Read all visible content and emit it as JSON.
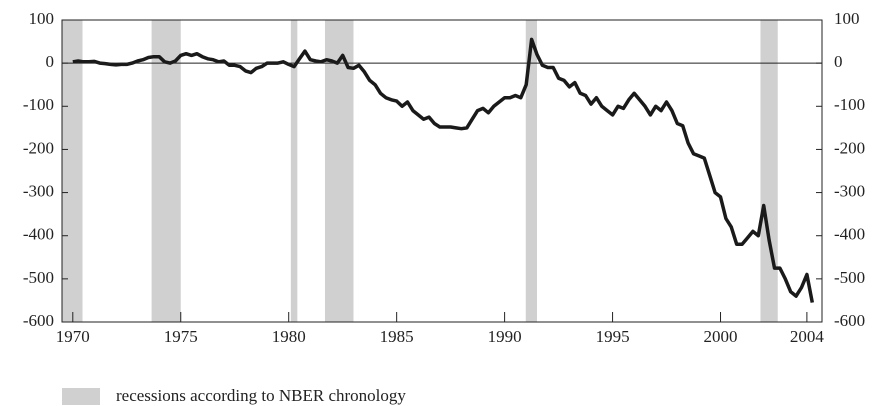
{
  "chart_data": {
    "type": "line",
    "x": [
      1970,
      1970.25,
      1970.5,
      1970.75,
      1971,
      1971.25,
      1971.5,
      1971.75,
      1972,
      1972.25,
      1972.5,
      1972.75,
      1973,
      1973.25,
      1973.5,
      1973.75,
      1974,
      1974.25,
      1974.5,
      1974.75,
      1975,
      1975.25,
      1975.5,
      1975.75,
      1976,
      1976.25,
      1976.5,
      1976.75,
      1977,
      1977.25,
      1977.5,
      1977.75,
      1978,
      1978.25,
      1978.5,
      1978.75,
      1979,
      1979.25,
      1979.5,
      1979.75,
      1980,
      1980.25,
      1980.5,
      1980.75,
      1981,
      1981.25,
      1981.5,
      1981.75,
      1982,
      1982.25,
      1982.5,
      1982.75,
      1983,
      1983.25,
      1983.5,
      1983.75,
      1984,
      1984.25,
      1984.5,
      1984.75,
      1985,
      1985.25,
      1985.5,
      1985.75,
      1986,
      1986.25,
      1986.5,
      1986.75,
      1987,
      1987.25,
      1987.5,
      1987.75,
      1988,
      1988.25,
      1988.5,
      1988.75,
      1989,
      1989.25,
      1989.5,
      1989.75,
      1990,
      1990.25,
      1990.5,
      1990.75,
      1991,
      1991.25,
      1991.5,
      1991.75,
      1992,
      1992.25,
      1992.5,
      1992.75,
      1993,
      1993.25,
      1993.5,
      1993.75,
      1994,
      1994.25,
      1994.5,
      1994.75,
      1995,
      1995.25,
      1995.5,
      1995.75,
      1996,
      1996.25,
      1996.5,
      1996.75,
      1997,
      1997.25,
      1997.5,
      1997.75,
      1998,
      1998.25,
      1998.5,
      1998.75,
      1999,
      1999.25,
      1999.5,
      1999.75,
      2000,
      2000.25,
      2000.5,
      2000.75,
      2001,
      2001.25,
      2001.5,
      2001.75,
      2002,
      2002.25,
      2002.5,
      2002.75,
      2003,
      2003.25,
      2003.5,
      2003.75,
      2004,
      2004.25
    ],
    "series": [
      {
        "color": "#1a1a1a",
        "values": [
          3,
          5,
          3,
          3,
          4,
          0,
          -1,
          -3,
          -4,
          -3,
          -3,
          0,
          5,
          8,
          13,
          15,
          15,
          3,
          0,
          5,
          18,
          22,
          18,
          22,
          15,
          10,
          8,
          3,
          5,
          -5,
          -5,
          -8,
          -18,
          -22,
          -12,
          -8,
          0,
          0,
          0,
          3,
          -3,
          -8,
          10,
          28,
          8,
          5,
          3,
          8,
          5,
          0,
          18,
          -10,
          -12,
          -5,
          -20,
          -40,
          -50,
          -70,
          -80,
          -85,
          -88,
          -100,
          -90,
          -110,
          -120,
          -130,
          -125,
          -140,
          -148,
          -148,
          -148,
          -150,
          -152,
          -150,
          -130,
          -110,
          -105,
          -115,
          -100,
          -90,
          -80,
          -80,
          -75,
          -80,
          -50,
          55,
          20,
          -5,
          -10,
          -10,
          -35,
          -40,
          -55,
          -45,
          -70,
          -75,
          -95,
          -80,
          -100,
          -110,
          -120,
          -100,
          -105,
          -85,
          -70,
          -85,
          -100,
          -120,
          -100,
          -110,
          -90,
          -110,
          -140,
          -145,
          -185,
          -210,
          -215,
          -220,
          -260,
          -300,
          -310,
          -360,
          -380,
          -420,
          -420,
          -405,
          -390,
          -400,
          -330,
          -410,
          -475,
          -475,
          -500,
          -530,
          -540,
          -520,
          -490,
          -555
        ]
      }
    ],
    "recessions": [
      [
        1969.5,
        1970.45
      ],
      [
        1973.65,
        1975.0
      ],
      [
        1980.1,
        1980.4
      ],
      [
        1981.68,
        1983.0
      ],
      [
        1990.98,
        1991.5
      ],
      [
        2001.85,
        2002.65
      ]
    ],
    "recession_color": "#d0d0d0",
    "legend_label": "recessions according to NBER chronology",
    "xlim": [
      1969.5,
      2004.7
    ],
    "xticks": [
      1970,
      1975,
      1980,
      1985,
      1990,
      1995,
      2000,
      2004
    ],
    "ylim": [
      -600,
      100
    ],
    "yticks": [
      100,
      0,
      -100,
      -200,
      -300,
      -400,
      -500,
      -600
    ]
  }
}
